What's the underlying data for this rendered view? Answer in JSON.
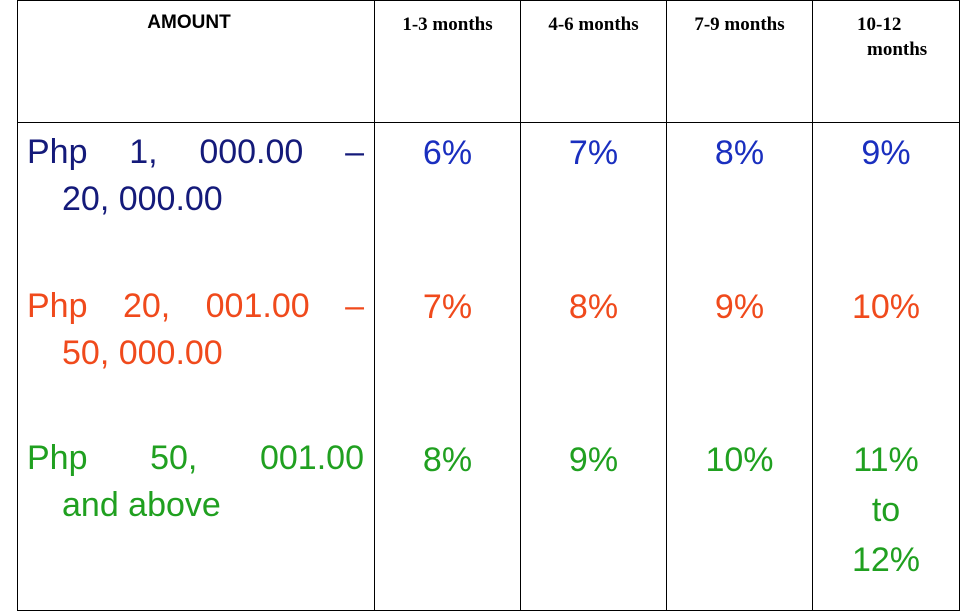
{
  "table": {
    "header": {
      "amount": "AMOUNT",
      "months": [
        "1-3 months",
        "4-6 months",
        "7-9 months"
      ],
      "last_month_line1": "10-12",
      "last_month_line2": "months"
    },
    "rows": [
      {
        "amount_parts": [
          "Php",
          "1,",
          "000.00",
          "–"
        ],
        "amount_line2": "20, 000.00",
        "rates": [
          "6%",
          "7%",
          "8%",
          "9%"
        ],
        "amount_color": "#141a7a",
        "rate_color": "#1a2fbf"
      },
      {
        "amount_parts": [
          "Php",
          "20,",
          "001.00",
          "–"
        ],
        "amount_line2": "50, 000.00",
        "rates": [
          "7%",
          "8%",
          "9%",
          "10%"
        ],
        "amount_color": "#f04a1c",
        "rate_color": "#f04a1c"
      },
      {
        "amount_parts": [
          "Php",
          "50,",
          "001.00"
        ],
        "amount_line2": "and above",
        "rates": [
          "8%",
          "9%",
          "10%"
        ],
        "last_rate_lines": [
          "11%",
          "to",
          "12%"
        ],
        "amount_color": "#20a020",
        "rate_color": "#20a020"
      }
    ]
  }
}
